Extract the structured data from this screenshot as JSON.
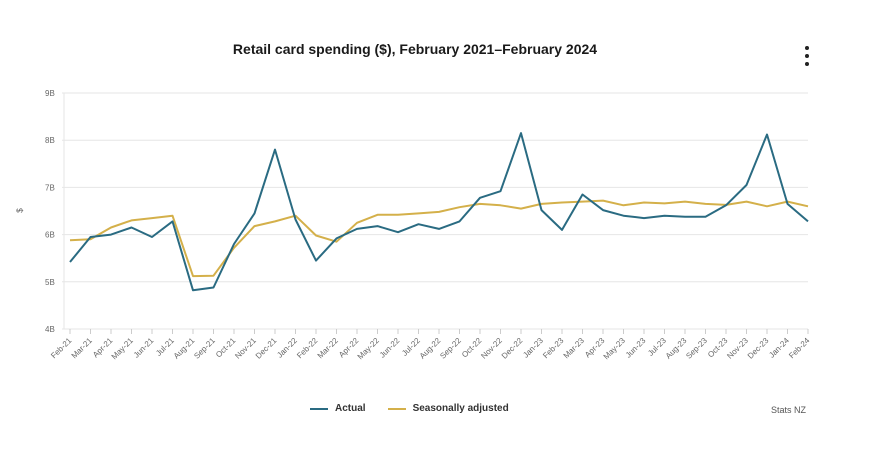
{
  "chart_data": {
    "type": "line",
    "title": "Retail card spending ($), February 2021–February 2024",
    "ylabel": "$",
    "xlabel": "",
    "ylim": [
      4,
      9
    ],
    "y_ticks": [
      "4B",
      "5B",
      "6B",
      "7B",
      "8B",
      "9B"
    ],
    "y_tick_values": [
      4,
      5,
      6,
      7,
      8,
      9
    ],
    "grid": true,
    "legend_position": "bottom",
    "categories": [
      "Feb-21",
      "Mar-21",
      "Apr-21",
      "May-21",
      "Jun-21",
      "Jul-21",
      "Aug-21",
      "Sep-21",
      "Oct-21",
      "Nov-21",
      "Dec-21",
      "Jan-22",
      "Feb-22",
      "Mar-22",
      "Apr-22",
      "May-22",
      "Jun-22",
      "Jul-22",
      "Aug-22",
      "Sep-22",
      "Oct-22",
      "Nov-22",
      "Dec-22",
      "Jan-23",
      "Feb-23",
      "Mar-23",
      "Apr-23",
      "May-23",
      "Jun-23",
      "Jul-23",
      "Aug-23",
      "Sep-23",
      "Oct-23",
      "Nov-23",
      "Dec-23",
      "Jan-24",
      "Feb-24"
    ],
    "series": [
      {
        "name": "Actual",
        "color": "#2a6b82",
        "values": [
          5.42,
          5.95,
          6.0,
          6.15,
          5.95,
          6.28,
          4.82,
          4.88,
          5.8,
          6.45,
          7.8,
          6.32,
          5.45,
          5.92,
          6.12,
          6.18,
          6.05,
          6.22,
          6.12,
          6.28,
          6.78,
          6.92,
          8.15,
          6.52,
          6.1,
          6.85,
          6.52,
          6.4,
          6.35,
          6.4,
          6.38,
          6.38,
          6.62,
          7.05,
          8.12,
          6.65,
          6.28
        ]
      },
      {
        "name": "Seasonally adjusted",
        "color": "#d4b04a",
        "values": [
          5.88,
          5.9,
          6.15,
          6.3,
          6.35,
          6.4,
          5.12,
          5.13,
          5.72,
          6.18,
          6.28,
          6.4,
          5.98,
          5.85,
          6.25,
          6.42,
          6.42,
          6.45,
          6.48,
          6.58,
          6.65,
          6.62,
          6.55,
          6.65,
          6.68,
          6.7,
          6.72,
          6.62,
          6.68,
          6.66,
          6.7,
          6.65,
          6.63,
          6.7,
          6.6,
          6.7,
          6.6
        ]
      }
    ]
  },
  "source_label": "Stats NZ",
  "menu": {
    "icon": "kebab-menu-icon"
  }
}
